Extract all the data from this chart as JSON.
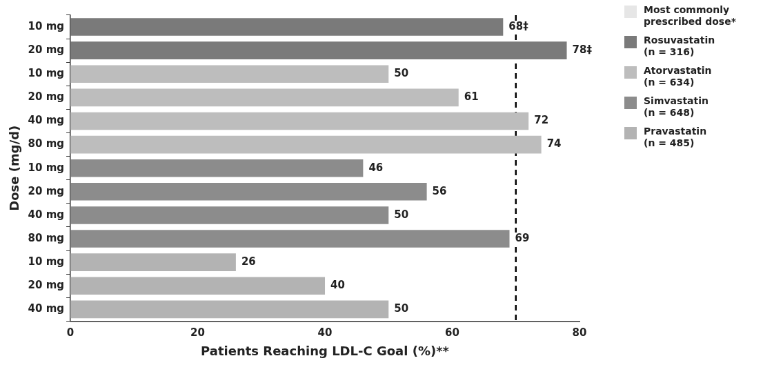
{
  "chart_data": {
    "type": "bar",
    "orientation": "horizontal",
    "xlabel": "Patients Reaching LDL-C Goal (%)**",
    "ylabel": "Dose (mg/d)",
    "categories": [
      "10 mg",
      "20 mg",
      "10 mg",
      "20 mg",
      "40 mg",
      "80 mg",
      "10 mg",
      "20 mg",
      "40 mg",
      "80 mg",
      "10 mg",
      "20 mg",
      "40 mg"
    ],
    "series": [
      {
        "name": "Rosuvastatin\n(n = 316)",
        "color": "#7a7a7a",
        "values": [
          68,
          78,
          null,
          null,
          null,
          null,
          null,
          null,
          null,
          null,
          null,
          null,
          null
        ],
        "value_labels": [
          "68‡",
          "78‡",
          null,
          null,
          null,
          null,
          null,
          null,
          null,
          null,
          null,
          null,
          null
        ]
      },
      {
        "name": "Atorvastatin\n(n = 634)",
        "color": "#bdbdbd",
        "values": [
          null,
          null,
          50,
          61,
          72,
          74,
          null,
          null,
          null,
          null,
          null,
          null,
          null
        ],
        "value_labels": [
          null,
          null,
          "50",
          "61",
          "72",
          "74",
          null,
          null,
          null,
          null,
          null,
          null,
          null
        ]
      },
      {
        "name": "Simvastatin\n(n = 648)",
        "color": "#8c8c8c",
        "values": [
          null,
          null,
          null,
          null,
          null,
          null,
          46,
          56,
          50,
          69,
          null,
          null,
          null
        ],
        "value_labels": [
          null,
          null,
          null,
          null,
          null,
          null,
          "46",
          "56",
          "50",
          "69",
          null,
          null,
          null
        ]
      },
      {
        "name": "Pravastatin\n(n = 485)",
        "color": "#b3b3b3",
        "values": [
          null,
          null,
          null,
          null,
          null,
          null,
          null,
          null,
          null,
          null,
          26,
          40,
          50
        ],
        "value_labels": [
          null,
          null,
          null,
          null,
          null,
          null,
          null,
          null,
          null,
          null,
          "26",
          "40",
          "50"
        ]
      }
    ],
    "xlim": [
      0,
      80
    ],
    "xticks": [
      0,
      20,
      40,
      60,
      80
    ],
    "ref_lines": [
      {
        "axis": "x",
        "value": 70,
        "color": "#000000",
        "line_style": "dashed"
      }
    ],
    "annotations": [
      "Most commonly prescribed dose*"
    ],
    "legend": "right",
    "grid": false
  }
}
